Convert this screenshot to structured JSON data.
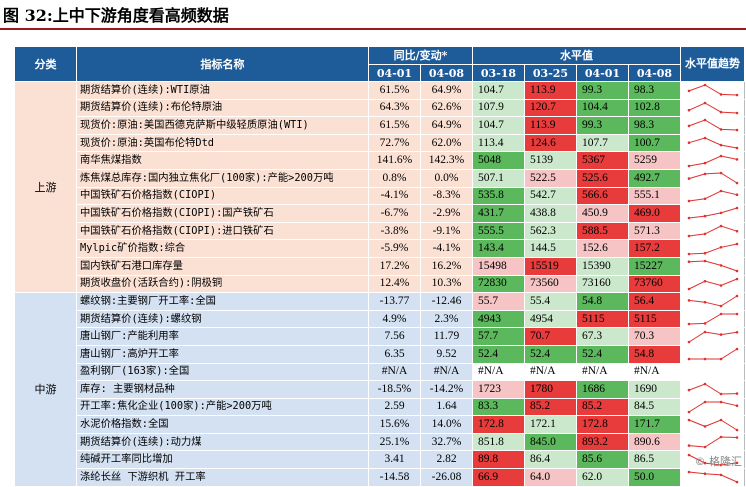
{
  "title": "图 32:上中下游角度看高频数据",
  "headers": {
    "category": "分类",
    "indicator": "指标名称",
    "yoy_group": "同比/变动*",
    "level_group": "水平值",
    "trend": "水平值趋势",
    "yoy_dates": [
      "04-01",
      "04-08"
    ],
    "level_dates": [
      "03-18",
      "03-25",
      "04-01",
      "04-08"
    ]
  },
  "colors": {
    "header_bg": "#1e5b99",
    "up_bg": "#fbe1d4",
    "mid_bg": "#d3e1f2",
    "green": "#5cb85c",
    "light_green": "#cce8cc",
    "red": "#e83c3c",
    "light_red": "#f6c4c4",
    "spark_line": "#e03030",
    "title_rule": "#9a1b1f"
  },
  "groups": [
    {
      "name": "上游",
      "key": "up",
      "rows": [
        {
          "name": "期货结算价(连续):WTI原油",
          "yoy": [
            "61.5%",
            "64.9%"
          ],
          "levels": [
            "104.7",
            "113.9",
            "99.3",
            "98.3"
          ],
          "colors": [
            "light_green",
            "red",
            "green",
            "green"
          ],
          "trend": [
            104.7,
            113.9,
            99.3,
            98.3
          ]
        },
        {
          "name": "期货结算价(连续):布伦特原油",
          "yoy": [
            "64.3%",
            "62.6%"
          ],
          "levels": [
            "107.9",
            "120.7",
            "104.4",
            "102.8"
          ],
          "colors": [
            "light_green",
            "red",
            "green",
            "green"
          ],
          "trend": [
            107.9,
            120.7,
            104.4,
            102.8
          ]
        },
        {
          "name": "现货价:原油:美国西德克萨斯中级轻质原油(WTI)",
          "yoy": [
            "61.5%",
            "64.9%"
          ],
          "levels": [
            "104.7",
            "113.9",
            "99.3",
            "98.3"
          ],
          "colors": [
            "light_green",
            "red",
            "green",
            "green"
          ],
          "trend": [
            104.7,
            113.9,
            99.3,
            98.3
          ]
        },
        {
          "name": "现货价:原油:英国布伦特Dtd",
          "yoy": [
            "72.7%",
            "62.0%"
          ],
          "levels": [
            "113.4",
            "124.6",
            "107.7",
            "100.7"
          ],
          "colors": [
            "light_green",
            "red",
            "light_green",
            "green"
          ],
          "trend": [
            113.4,
            124.6,
            107.7,
            100.7
          ]
        },
        {
          "name": "南华焦煤指数",
          "yoy": [
            "141.6%",
            "142.3%"
          ],
          "levels": [
            "5048",
            "5139",
            "5367",
            "5259"
          ],
          "colors": [
            "green",
            "light_green",
            "red",
            "light_red"
          ],
          "trend": [
            5048,
            5139,
            5367,
            5259
          ]
        },
        {
          "name": "炼焦煤总库存:国内独立焦化厂(100家):产能>200万吨",
          "yoy": [
            "0.8%",
            "0.0%"
          ],
          "levels": [
            "507.1",
            "522.5",
            "525.6",
            "492.7"
          ],
          "colors": [
            "light_green",
            "light_red",
            "red",
            "green"
          ],
          "trend": [
            507.1,
            522.5,
            525.6,
            492.7
          ]
        },
        {
          "name": "中国铁矿石价格指数(CIOPI)",
          "yoy": [
            "-4.1%",
            "-8.3%"
          ],
          "levels": [
            "535.8",
            "542.7",
            "566.6",
            "555.1"
          ],
          "colors": [
            "green",
            "light_green",
            "red",
            "light_red"
          ],
          "trend": [
            535.8,
            542.7,
            566.6,
            555.1
          ]
        },
        {
          "name": "中国铁矿石价格指数(CIOPI):国产铁矿石",
          "yoy": [
            "-6.7%",
            "-2.9%"
          ],
          "levels": [
            "431.7",
            "438.8",
            "450.9",
            "469.0"
          ],
          "colors": [
            "green",
            "light_green",
            "light_red",
            "red"
          ],
          "trend": [
            431.7,
            438.8,
            450.9,
            469.0
          ]
        },
        {
          "name": "中国铁矿石价格指数(CIOPI):进口铁矿石",
          "yoy": [
            "-3.8%",
            "-9.1%"
          ],
          "levels": [
            "555.5",
            "562.3",
            "588.5",
            "571.3"
          ],
          "colors": [
            "green",
            "light_green",
            "red",
            "light_red"
          ],
          "trend": [
            555.5,
            562.3,
            588.5,
            571.3
          ]
        },
        {
          "name": "Mylpic矿价指数:综合",
          "yoy": [
            "-5.9%",
            "-4.1%"
          ],
          "levels": [
            "143.4",
            "144.5",
            "152.6",
            "157.2"
          ],
          "colors": [
            "green",
            "light_green",
            "light_red",
            "red"
          ],
          "trend": [
            143.4,
            144.5,
            152.6,
            157.2
          ]
        },
        {
          "name": "国内铁矿石港口库存量",
          "yoy": [
            "17.2%",
            "16.2%"
          ],
          "levels": [
            "15498",
            "15519",
            "15390",
            "15227"
          ],
          "colors": [
            "light_red",
            "red",
            "light_green",
            "green"
          ],
          "trend": [
            15498,
            15519,
            15390,
            15227
          ]
        },
        {
          "name": "期货收盘价(活跃合约):阴极铜",
          "yoy": [
            "12.4%",
            "10.3%"
          ],
          "levels": [
            "72830",
            "73560",
            "73160",
            "73760"
          ],
          "colors": [
            "green",
            "light_red",
            "light_green",
            "red"
          ],
          "trend": [
            72830,
            73560,
            73160,
            73760
          ]
        }
      ]
    },
    {
      "name": "中游",
      "key": "mid",
      "rows": [
        {
          "name": "螺纹钢:主要钢厂开工率:全国",
          "yoy": [
            "-13.77",
            "-12.46"
          ],
          "levels": [
            "55.7",
            "55.4",
            "54.8",
            "56.4"
          ],
          "colors": [
            "light_red",
            "light_green",
            "green",
            "red"
          ],
          "trend": [
            55.7,
            55.4,
            54.8,
            56.4
          ]
        },
        {
          "name": "期货结算价(连续):螺纹钢",
          "yoy": [
            "4.9%",
            "2.3%"
          ],
          "levels": [
            "4943",
            "4954",
            "5115",
            "5115"
          ],
          "colors": [
            "green",
            "light_green",
            "red",
            "red"
          ],
          "trend": [
            4943,
            4954,
            5115,
            5115
          ]
        },
        {
          "name": "唐山钢厂:产能利用率",
          "yoy": [
            "7.56",
            "11.79"
          ],
          "levels": [
            "57.7",
            "70.7",
            "67.3",
            "70.3"
          ],
          "colors": [
            "green",
            "red",
            "light_green",
            "light_red"
          ],
          "trend": [
            57.7,
            70.7,
            67.3,
            70.3
          ]
        },
        {
          "name": "唐山钢厂:高炉开工率",
          "yoy": [
            "6.35",
            "9.52"
          ],
          "levels": [
            "52.4",
            "52.4",
            "52.4",
            "54.8"
          ],
          "colors": [
            "green",
            "green",
            "green",
            "red"
          ],
          "trend": [
            52.4,
            52.4,
            52.4,
            54.8
          ]
        },
        {
          "name": "盈利钢厂(163家):全国",
          "yoy": [
            "#N/A",
            "#N/A"
          ],
          "levels": [
            "#N/A",
            "#N/A",
            "#N/A",
            "#N/A"
          ],
          "colors": [
            "none",
            "none",
            "none",
            "none"
          ],
          "trend": []
        },
        {
          "name": "库存: 主要钢材品种",
          "yoy": [
            "-18.5%",
            "-14.2%"
          ],
          "levels": [
            "1723",
            "1780",
            "1686",
            "1690"
          ],
          "colors": [
            "light_red",
            "red",
            "green",
            "light_green"
          ],
          "trend": [
            1723,
            1780,
            1686,
            1690
          ]
        },
        {
          "name": "开工率:焦化企业(100家):产能>200万吨",
          "yoy": [
            "2.59",
            "1.64"
          ],
          "levels": [
            "83.3",
            "85.2",
            "85.2",
            "84.5"
          ],
          "colors": [
            "green",
            "red",
            "red",
            "light_green"
          ],
          "trend": [
            83.3,
            85.2,
            85.2,
            84.5
          ]
        },
        {
          "name": "水泥价格指数:全国",
          "yoy": [
            "15.6%",
            "14.0%"
          ],
          "levels": [
            "172.8",
            "172.1",
            "172.8",
            "171.7"
          ],
          "colors": [
            "red",
            "light_green",
            "red",
            "green"
          ],
          "trend": [
            172.8,
            172.1,
            172.8,
            171.7
          ]
        },
        {
          "name": "期货结算价(连续):动力煤",
          "yoy": [
            "25.1%",
            "32.7%"
          ],
          "levels": [
            "851.8",
            "845.0",
            "893.2",
            "890.6"
          ],
          "colors": [
            "light_green",
            "green",
            "red",
            "light_red"
          ],
          "trend": [
            851.8,
            845.0,
            893.2,
            890.6
          ]
        },
        {
          "name": "纯碱开工率同比增加",
          "yoy": [
            "3.41",
            "2.82"
          ],
          "levels": [
            "89.8",
            "86.4",
            "85.6",
            "86.5"
          ],
          "colors": [
            "red",
            "light_green",
            "green",
            "light_green"
          ],
          "trend": [
            89.8,
            86.4,
            85.6,
            86.5
          ]
        },
        {
          "name": "涤纶长丝 下游织机 开工率",
          "yoy": [
            "-14.58",
            "-26.08"
          ],
          "levels": [
            "66.9",
            "64.0",
            "62.0",
            "50.0"
          ],
          "colors": [
            "red",
            "light_red",
            "light_green",
            "green"
          ],
          "trend": [
            66.9,
            64.0,
            62.0,
            50.0
          ]
        }
      ]
    }
  ],
  "watermark": "© 格隆汇"
}
